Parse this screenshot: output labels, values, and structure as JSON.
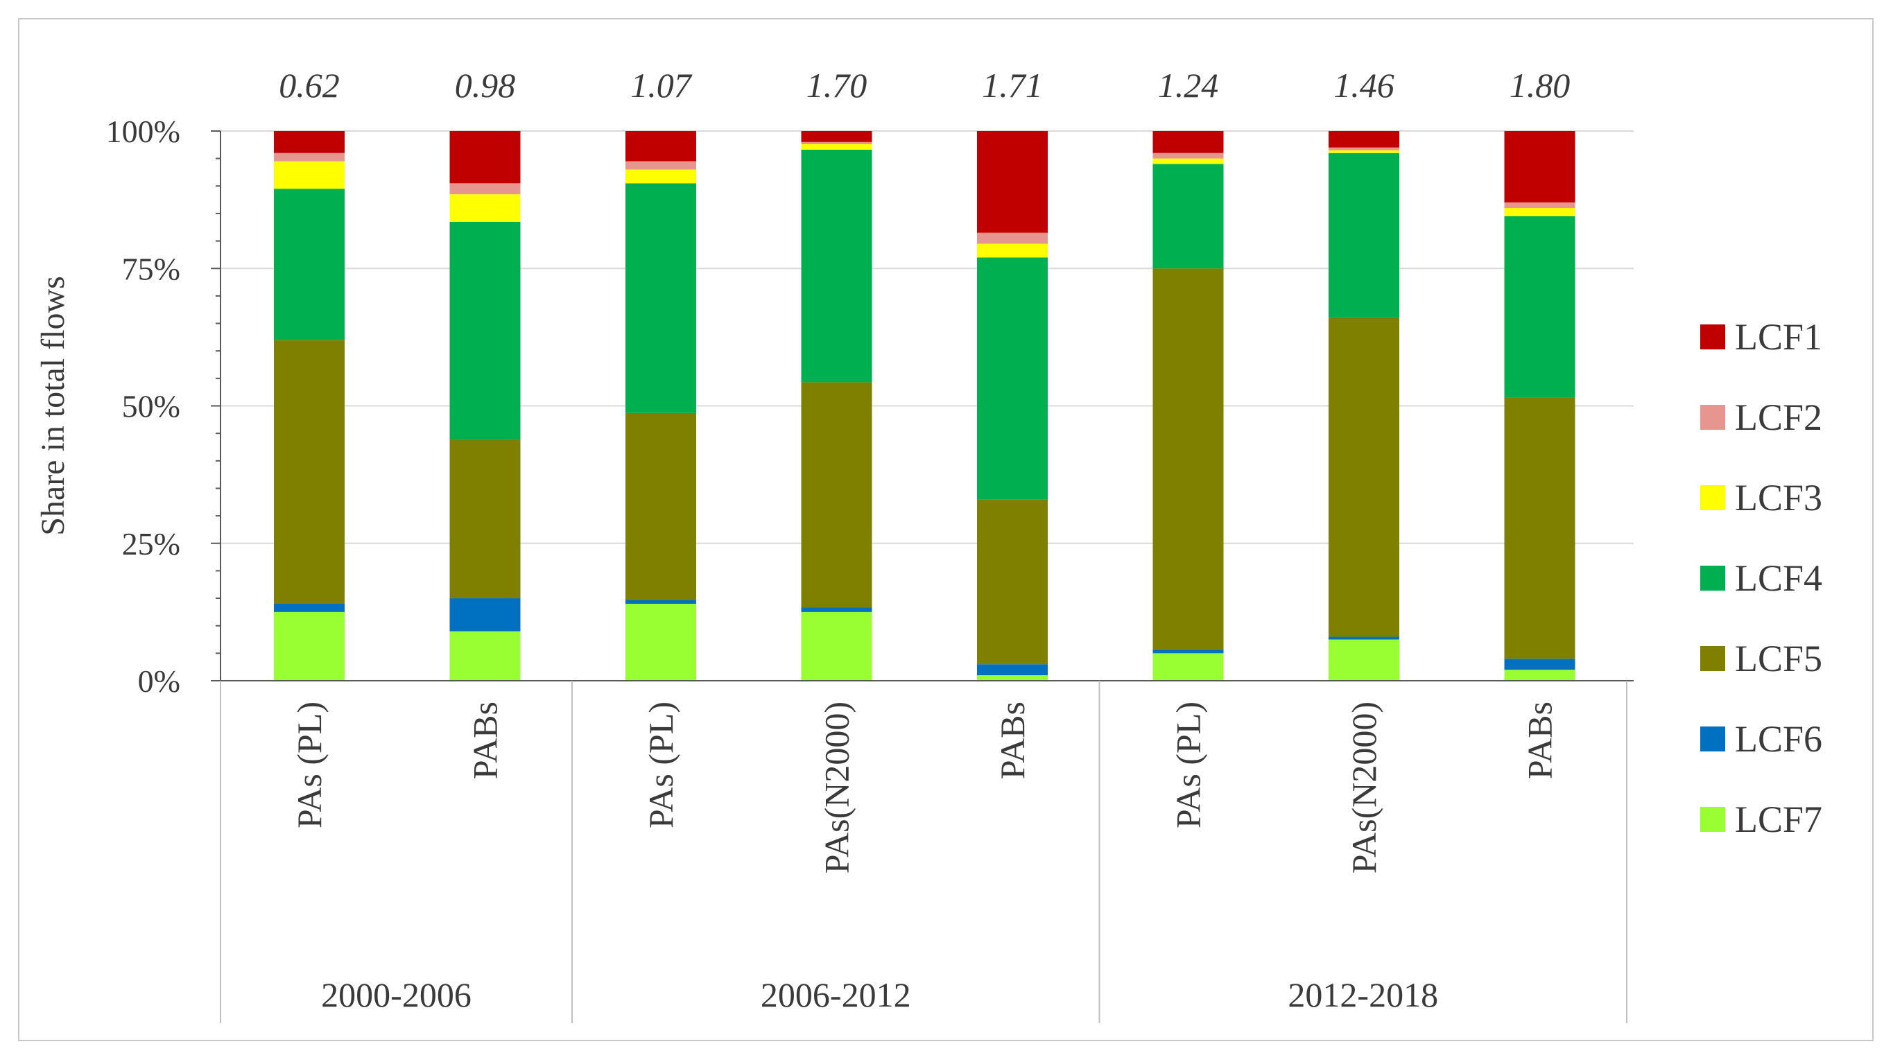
{
  "chart_data": {
    "type": "bar",
    "stacked": true,
    "title": "",
    "xlabel": "",
    "ylabel": "Share in total flows",
    "ylim": [
      0,
      100
    ],
    "y_ticks": [
      "0%",
      "25%",
      "50%",
      "75%",
      "100%"
    ],
    "y_tick_values": [
      0,
      25,
      50,
      75,
      100
    ],
    "groups": [
      {
        "label": "2000-2006",
        "categories": [
          "PAs (PL)",
          "PABs"
        ]
      },
      {
        "label": "2006-2012",
        "categories": [
          "PAs (PL)",
          "PAs(N2000)",
          "PABs"
        ]
      },
      {
        "label": "2012-2018",
        "categories": [
          "PAs (PL)",
          "PAs(N2000)",
          "PABs"
        ]
      }
    ],
    "categories": [
      "PAs (PL)",
      "PABs",
      "PAs (PL)",
      "PAs(N2000)",
      "PABs",
      "PAs (PL)",
      "PAs(N2000)",
      "PABs"
    ],
    "top_labels": [
      "0.62",
      "0.98",
      "1.07",
      "1.70",
      "1.71",
      "1.24",
      "1.46",
      "1.80"
    ],
    "series": [
      {
        "name": "LCF7",
        "color": "#99ff33",
        "values": [
          12.5,
          9,
          14,
          12.5,
          1,
          5,
          7.5,
          2
        ]
      },
      {
        "name": "LCF6",
        "color": "#0070c0",
        "values": [
          1.5,
          6,
          0.7,
          0.8,
          2,
          0.7,
          0.5,
          2
        ]
      },
      {
        "name": "LCF5",
        "color": "#808000",
        "values": [
          48,
          29,
          34,
          41,
          30,
          69.3,
          58,
          47.5
        ]
      },
      {
        "name": "LCF4",
        "color": "#00b050",
        "values": [
          27.5,
          39.5,
          41.8,
          42.3,
          44,
          19,
          30,
          33
        ]
      },
      {
        "name": "LCF3",
        "color": "#ffff00",
        "values": [
          5,
          5,
          2.5,
          1,
          2.5,
          1,
          0.5,
          1.5
        ]
      },
      {
        "name": "LCF2",
        "color": "#e6958f",
        "values": [
          1.5,
          2,
          1.5,
          0.4,
          2,
          1,
          0.5,
          1
        ]
      },
      {
        "name": "LCF1",
        "color": "#c00000",
        "values": [
          4,
          9.5,
          5.5,
          2,
          18.5,
          4,
          3,
          13
        ]
      }
    ],
    "legend": [
      "LCF1",
      "LCF2",
      "LCF3",
      "LCF4",
      "LCF5",
      "LCF6",
      "LCF7"
    ],
    "legend_position": "right",
    "grid": true
  }
}
